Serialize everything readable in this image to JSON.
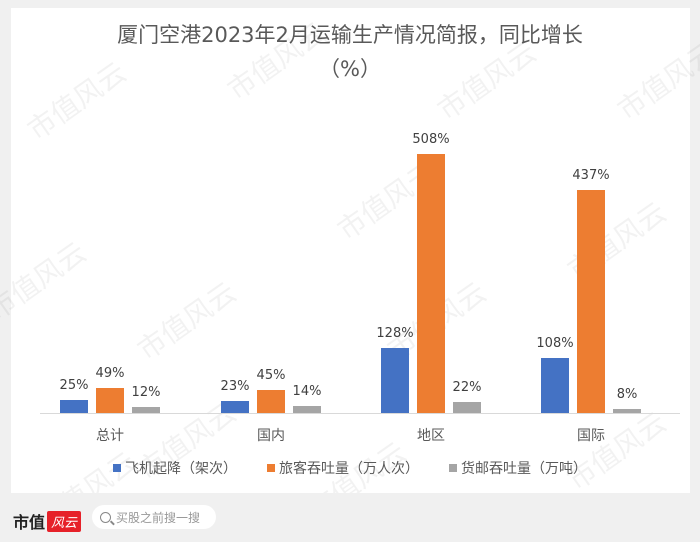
{
  "chart_data": {
    "type": "bar",
    "title": "厦门空港2023年2月运输生产情况简报，同比增长（%）",
    "categories": [
      "总计",
      "国内",
      "地区",
      "国际"
    ],
    "series": [
      {
        "name": "飞机起降（架次）",
        "color": "#4472c4",
        "values": [
          25,
          23,
          128,
          108
        ],
        "labels": [
          "25%",
          "23%",
          "128%",
          "108%"
        ]
      },
      {
        "name": "旅客吞吐量（万人次）",
        "color": "#ed7d31",
        "values": [
          49,
          45,
          508,
          437
        ],
        "labels": [
          "49%",
          "45%",
          "508%",
          "437%"
        ]
      },
      {
        "name": "货邮吞吐量（万吨）",
        "color": "#a5a5a5",
        "values": [
          12,
          14,
          22,
          8
        ],
        "labels": [
          "12%",
          "14%",
          "22%",
          "8%"
        ]
      }
    ],
    "xlabel": "",
    "ylabel": "",
    "grid": false,
    "legend_position": "bottom",
    "unit": "%"
  },
  "title": {
    "line1": "厦门空港2023年2月运输生产情况简报，同比增长",
    "line2": "（%）"
  },
  "watermark": "市值风云",
  "footer": {
    "brand_text": "市值",
    "brand_badge": "风云",
    "search_placeholder": "买股之前搜一搜"
  }
}
